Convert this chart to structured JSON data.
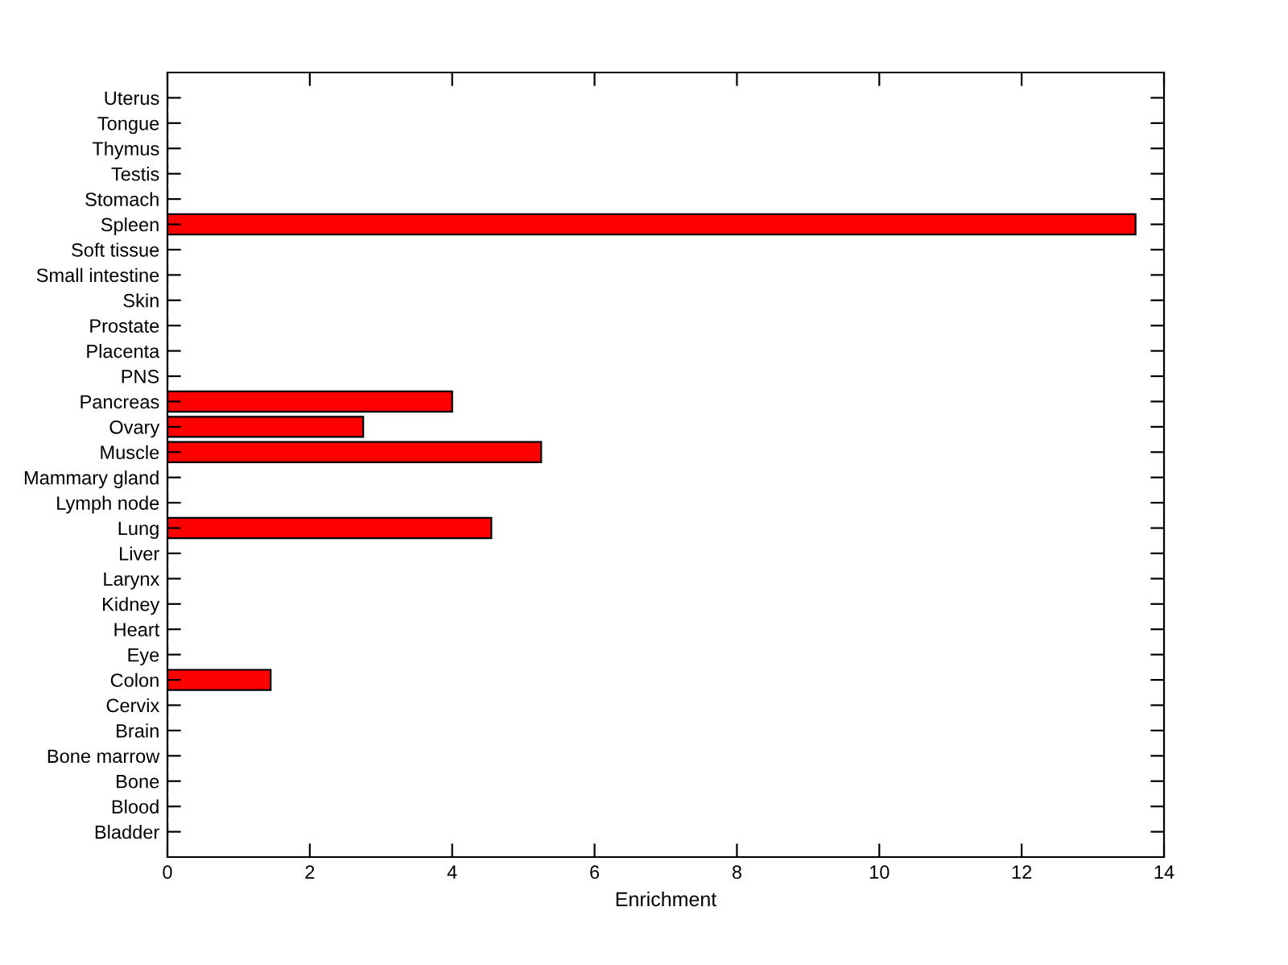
{
  "chart_data": {
    "type": "bar",
    "orientation": "horizontal",
    "xlabel": "Enrichment",
    "categories": [
      "Uterus",
      "Tongue",
      "Thymus",
      "Testis",
      "Stomach",
      "Spleen",
      "Soft tissue",
      "Small intestine",
      "Skin",
      "Prostate",
      "Placenta",
      "PNS",
      "Pancreas",
      "Ovary",
      "Muscle",
      "Mammary gland",
      "Lymph node",
      "Lung",
      "Liver",
      "Larynx",
      "Kidney",
      "Heart",
      "Eye",
      "Colon",
      "Cervix",
      "Brain",
      "Bone marrow",
      "Bone",
      "Blood",
      "Bladder"
    ],
    "values": [
      0,
      0,
      0,
      0,
      0,
      13.6,
      0,
      0,
      0,
      0,
      0,
      0,
      4.0,
      2.75,
      5.25,
      0,
      0,
      4.55,
      0,
      0,
      0,
      0,
      0,
      1.45,
      0,
      0,
      0,
      0,
      0,
      0
    ],
    "color": "#ff0000",
    "xlim": [
      0,
      14
    ],
    "xticks": [
      0,
      2,
      4,
      6,
      8,
      10,
      12,
      14
    ],
    "grid": false
  }
}
